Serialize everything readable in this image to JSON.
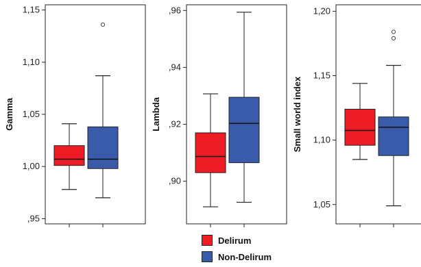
{
  "chart_data": [
    {
      "type": "box",
      "ylabel": "Gamma",
      "ylim": [
        0.945,
        1.155
      ],
      "yticks": [
        "1,15",
        "1,10",
        "1,05",
        "1,00",
        ",95"
      ],
      "ytick_values": [
        1.15,
        1.1,
        1.05,
        1.0,
        0.95
      ],
      "series": [
        {
          "name": "Delirum",
          "min": 0.978,
          "q1": 1.001,
          "median": 1.007,
          "q3": 1.02,
          "max": 1.041,
          "outliers": []
        },
        {
          "name": "Non-Delirum",
          "min": 0.97,
          "q1": 0.998,
          "median": 1.007,
          "q3": 1.038,
          "max": 1.087,
          "outliers": [
            1.136
          ]
        }
      ]
    },
    {
      "type": "box",
      "ylabel": "Lambda",
      "ylim": [
        0.885,
        0.962
      ],
      "yticks": [
        ",96",
        ",94",
        ",92",
        ",90"
      ],
      "ytick_values": [
        0.96,
        0.94,
        0.92,
        0.9
      ],
      "series": [
        {
          "name": "Delirum",
          "min": 0.891,
          "q1": 0.903,
          "median": 0.9087,
          "q3": 0.917,
          "max": 0.9307,
          "outliers": []
        },
        {
          "name": "Non-Delirum",
          "min": 0.8926,
          "q1": 0.9065,
          "median": 0.9203,
          "q3": 0.9295,
          "max": 0.9594,
          "outliers": []
        }
      ]
    },
    {
      "type": "box",
      "ylabel": "Small world index",
      "ylim": [
        1.035,
        1.205
      ],
      "yticks": [
        "1,20",
        "1,15",
        "1,10",
        "1,05"
      ],
      "ytick_values": [
        1.2,
        1.15,
        1.1,
        1.05
      ],
      "series": [
        {
          "name": "Delirum",
          "min": 1.085,
          "q1": 1.096,
          "median": 1.1075,
          "q3": 1.124,
          "max": 1.144,
          "outliers": []
        },
        {
          "name": "Non-Delirum",
          "min": 1.049,
          "q1": 1.088,
          "median": 1.11,
          "q3": 1.118,
          "max": 1.158,
          "outliers": [
            1.179,
            1.184
          ]
        }
      ]
    }
  ],
  "legend": {
    "items": [
      {
        "label": "Delirum",
        "color": "#ee1c24"
      },
      {
        "label": "Non-Delirum",
        "color": "#3a5ba9"
      }
    ]
  }
}
